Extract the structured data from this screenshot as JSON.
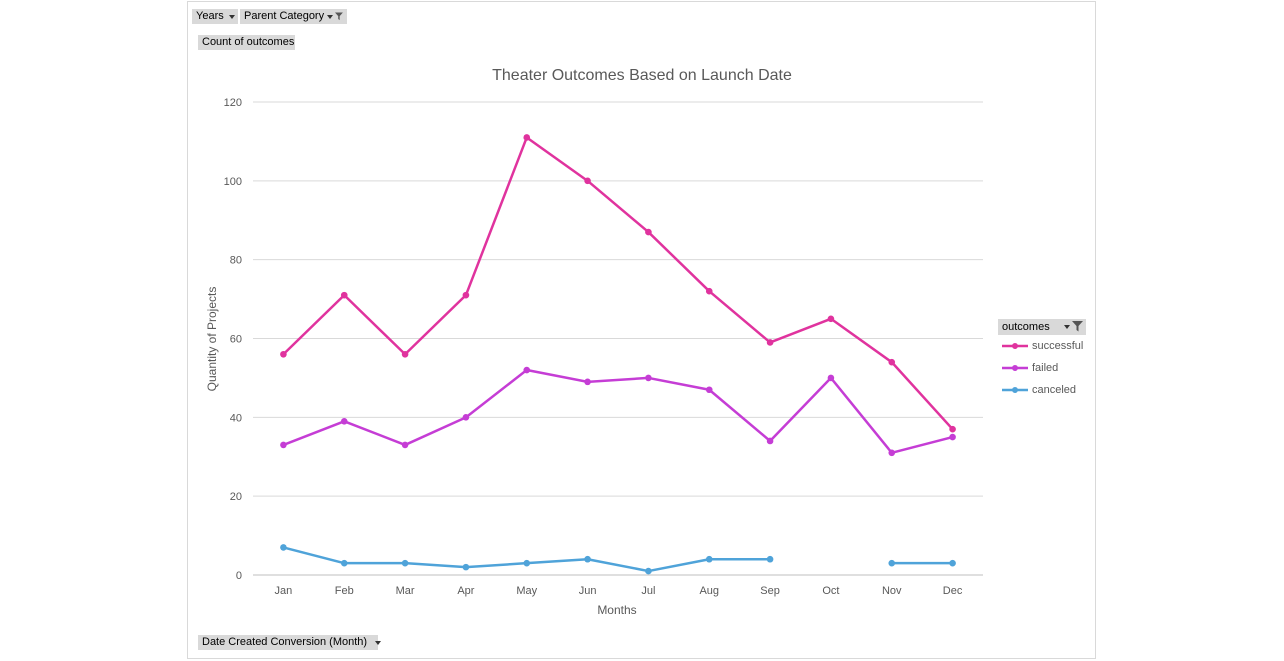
{
  "filters": {
    "years_label": "Years",
    "parent_category_label": "Parent Category",
    "value_field_label": "Count of outcomes",
    "axis_field_label": "Date Created Conversion (Month)"
  },
  "legend": {
    "header": "outcomes",
    "items": [
      {
        "label": "successful",
        "color": "#e0339e"
      },
      {
        "label": "failed",
        "color": "#c53dd5"
      },
      {
        "label": "canceled",
        "color": "#4fa3d9"
      }
    ]
  },
  "chart_data": {
    "type": "line",
    "title": "Theater Outcomes Based on Launch Date",
    "xlabel": "Months",
    "ylabel": "Quantity of Projects",
    "categories": [
      "Jan",
      "Feb",
      "Mar",
      "Apr",
      "May",
      "Jun",
      "Jul",
      "Aug",
      "Sep",
      "Oct",
      "Nov",
      "Dec"
    ],
    "ylim": [
      0,
      120
    ],
    "yticks": [
      0,
      20,
      40,
      60,
      80,
      100,
      120
    ],
    "grid": true,
    "legend_position": "right",
    "series": [
      {
        "name": "successful",
        "color": "#e0339e",
        "values": [
          56,
          71,
          56,
          71,
          111,
          100,
          87,
          72,
          59,
          65,
          54,
          37
        ]
      },
      {
        "name": "failed",
        "color": "#c53dd5",
        "values": [
          33,
          39,
          33,
          40,
          52,
          49,
          50,
          47,
          34,
          50,
          31,
          35
        ]
      },
      {
        "name": "canceled",
        "color": "#4fa3d9",
        "values": [
          7,
          3,
          3,
          2,
          3,
          4,
          1,
          4,
          4,
          null,
          3,
          3
        ]
      }
    ]
  }
}
